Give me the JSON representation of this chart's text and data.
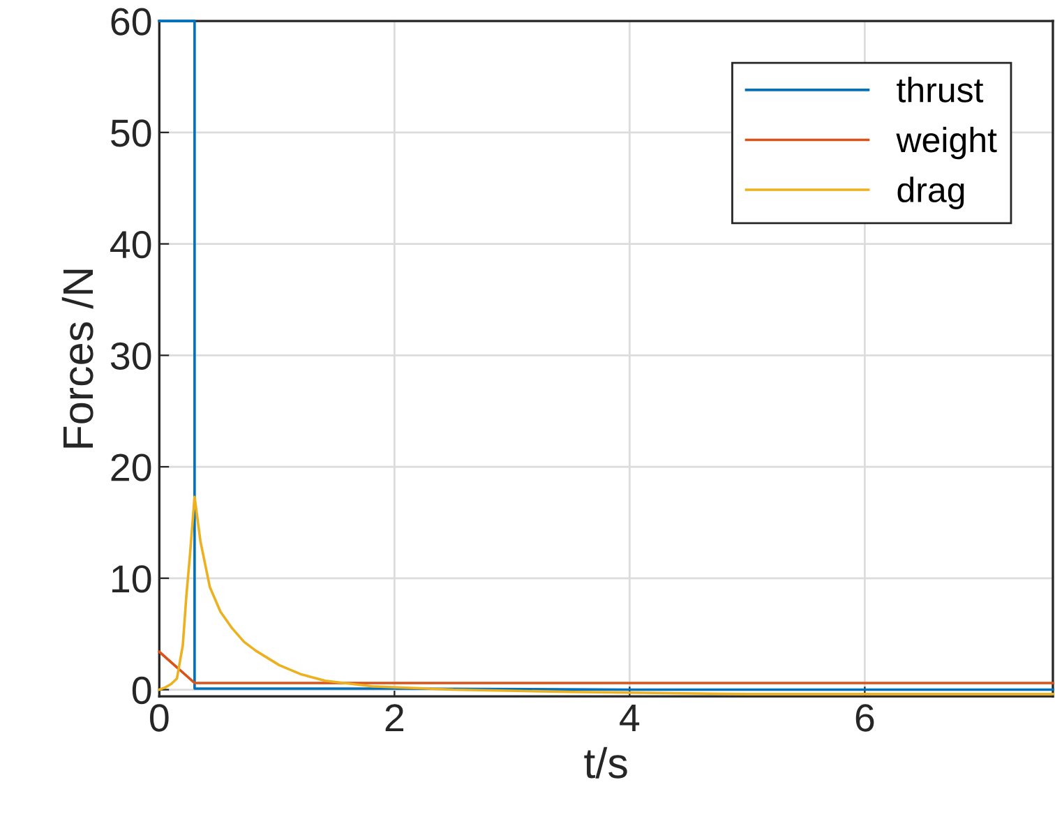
{
  "chart_data": {
    "type": "line",
    "xlabel": "t/s",
    "ylabel": "Forces /N",
    "xlim": [
      0,
      7.6
    ],
    "xticks": [
      0,
      2,
      4,
      6
    ],
    "ylim": [
      -0.6,
      60
    ],
    "yticks": [
      0,
      10,
      20,
      30,
      40,
      50,
      60
    ],
    "grid": true,
    "legend": "top right",
    "series": [
      {
        "name": "thrust",
        "color": "#0072bd",
        "x": [
          0,
          0.3,
          0.3,
          2,
          4,
          7.6
        ],
        "values": [
          60,
          60,
          0.1,
          0.1,
          0,
          0
        ]
      },
      {
        "name": "weight",
        "color": "#d95319",
        "x": [
          0,
          0.3,
          7.6
        ],
        "values": [
          3.4,
          0.6,
          0.6
        ]
      },
      {
        "name": "drag",
        "color": "#edb120",
        "x": [
          0,
          0.05,
          0.1,
          0.15,
          0.2,
          0.23,
          0.26,
          0.3,
          0.35,
          0.43,
          0.52,
          0.62,
          0.72,
          0.82,
          1.02,
          1.2,
          1.41,
          1.81,
          2.5,
          3.5,
          5,
          7.6
        ],
        "values": [
          0,
          0.2,
          0.5,
          1.0,
          4,
          8.4,
          12,
          17.3,
          13.3,
          9.2,
          7,
          5.5,
          4.3,
          3.5,
          2.2,
          1.4,
          0.8,
          0.3,
          0,
          -0.2,
          -0.4,
          -0.4
        ]
      }
    ]
  }
}
